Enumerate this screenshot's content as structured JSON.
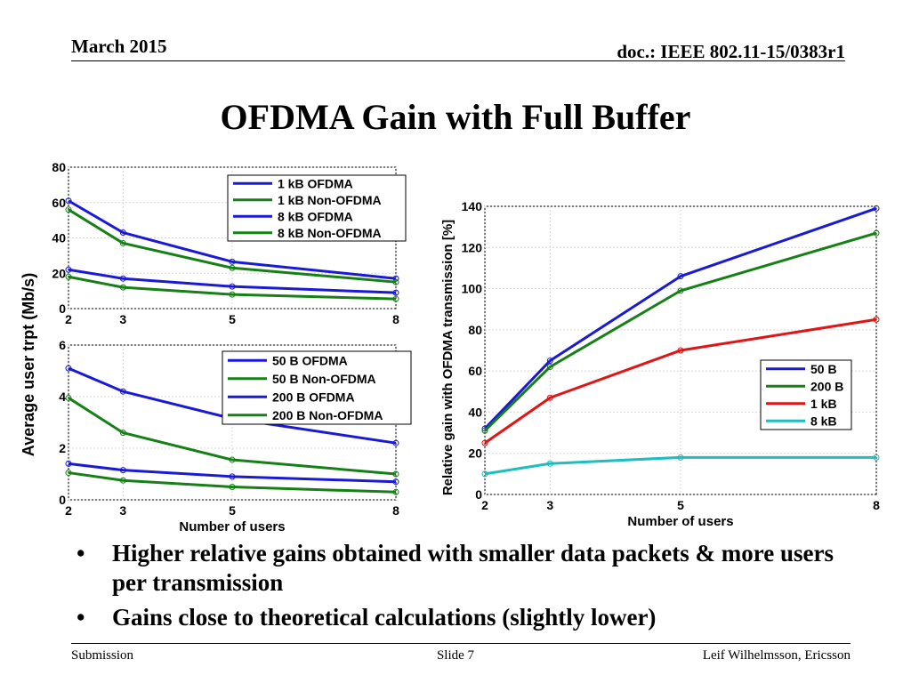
{
  "header": {
    "date": "March 2015",
    "doc": "doc.: IEEE 802.11-15/0383r1"
  },
  "title": "OFDMA Gain with Full Buffer",
  "shared_labels": {
    "ylabel_left": "Average user trpt (Mb/s)",
    "xlabel": "Number of users"
  },
  "colors": {
    "blue": "#1a1ad6",
    "green": "#168016",
    "red": "#e01515",
    "cyan": "#1fbdbd"
  },
  "chart_data": [
    {
      "id": "top_left",
      "type": "line",
      "xlabel": "",
      "ylabel": "",
      "x": [
        2,
        3,
        5,
        8
      ],
      "xticks": [
        "2",
        "3",
        "5",
        "8"
      ],
      "xlim": [
        2,
        8
      ],
      "ylim": [
        0,
        80
      ],
      "yticks": [
        "0",
        "20",
        "40",
        "60",
        "80"
      ],
      "grid": true,
      "legend_position": "top-right",
      "series": [
        {
          "name": "1 kB OFDMA",
          "color": "blue",
          "values": [
            61,
            43,
            26.5,
            17
          ]
        },
        {
          "name": "1 kB Non-OFDMA",
          "color": "green",
          "values": [
            56,
            37,
            23,
            15
          ]
        },
        {
          "name": "8 kB OFDMA",
          "color": "blue",
          "values": [
            22,
            17,
            12.5,
            9
          ]
        },
        {
          "name": "8 kB Non-OFDMA",
          "color": "green",
          "values": [
            18,
            12,
            8,
            5.5
          ]
        }
      ]
    },
    {
      "id": "bottom_left",
      "type": "line",
      "xlabel": "Number of users",
      "ylabel": "",
      "x": [
        2,
        3,
        5,
        8
      ],
      "xticks": [
        "2",
        "3",
        "5",
        "8"
      ],
      "xlim": [
        2,
        8
      ],
      "ylim": [
        0,
        6
      ],
      "yticks": [
        "0",
        "2",
        "4",
        "6"
      ],
      "grid": true,
      "legend_position": "top-right",
      "series": [
        {
          "name": "50 B OFDMA",
          "color": "blue",
          "values": [
            5.1,
            4.2,
            3.15,
            2.2
          ]
        },
        {
          "name": "50 B Non-OFDMA",
          "color": "green",
          "values": [
            3.95,
            2.6,
            1.55,
            1.0
          ]
        },
        {
          "name": "200 B OFDMA",
          "color": "blue",
          "values": [
            1.4,
            1.15,
            0.9,
            0.7
          ]
        },
        {
          "name": "200 B Non-OFDMA",
          "color": "green",
          "values": [
            1.05,
            0.75,
            0.5,
            0.3
          ]
        }
      ]
    },
    {
      "id": "right",
      "type": "line",
      "xlabel": "Number of users",
      "ylabel": "Relative gain with OFDMA transmission [%]",
      "x": [
        2,
        3,
        5,
        8
      ],
      "xticks": [
        "2",
        "3",
        "5",
        "8"
      ],
      "xlim": [
        2,
        8
      ],
      "ylim": [
        0,
        140
      ],
      "yticks": [
        "0",
        "20",
        "40",
        "60",
        "80",
        "100",
        "120",
        "140"
      ],
      "grid": true,
      "legend_position": "middle-right",
      "series": [
        {
          "name": "50 B",
          "color": "blue",
          "values": [
            32,
            65,
            106,
            139
          ]
        },
        {
          "name": "200 B",
          "color": "green",
          "values": [
            31,
            62,
            99,
            127
          ]
        },
        {
          "name": "1 kB",
          "color": "red",
          "values": [
            25,
            47,
            70,
            85
          ]
        },
        {
          "name": "8 kB",
          "color": "cyan",
          "values": [
            10,
            15,
            18,
            18
          ]
        }
      ]
    }
  ],
  "bullets": [
    "Higher relative gains obtained with smaller data packets & more users per transmission",
    "Gains close to theoretical calculations (slightly lower)"
  ],
  "bullet_glyph": "•",
  "footer": {
    "left": "Submission",
    "center": "Slide 7",
    "right": "Leif Wilhelmsson, Ericsson"
  }
}
